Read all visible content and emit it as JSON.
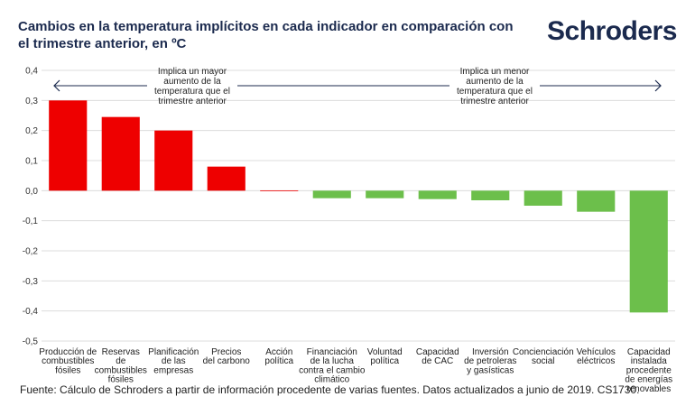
{
  "title": "Cambios en la temperatura implícitos en cada indicador en comparación con el trimestre anterior, en ºC",
  "logo_text": "Schroders",
  "source": "Fuente: Cálculo de Schroders a partir de información procedente de varias fuentes. Datos actualizados a junio de 2019. CS1730.",
  "colors": {
    "positive": "#ee0000",
    "negative": "#6cbf4b",
    "grid": "#dcdcdc",
    "text": "#1b2a4e"
  },
  "chart_data": {
    "type": "bar",
    "ylim": [
      -0.5,
      0.4
    ],
    "yticks": [
      {
        "value": 0.4,
        "label": "0,4"
      },
      {
        "value": 0.3,
        "label": "0,3"
      },
      {
        "value": 0.2,
        "label": "0,2"
      },
      {
        "value": 0.1,
        "label": "0,1"
      },
      {
        "value": 0.0,
        "label": "0,0"
      },
      {
        "value": -0.1,
        "label": "-0,1"
      },
      {
        "value": -0.2,
        "label": "-0,2"
      },
      {
        "value": -0.3,
        "label": "-0,3"
      },
      {
        "value": -0.4,
        "label": "-0,4"
      },
      {
        "value": -0.5,
        "label": "-0,5"
      }
    ],
    "grid": true,
    "categories": [
      [
        "Producción de",
        "combustibles",
        "fósiles"
      ],
      [
        "Reservas",
        "de",
        "combustibles",
        "fósiles"
      ],
      [
        "Planificación",
        "de las",
        "empresas"
      ],
      [
        "Precios",
        "del carbono"
      ],
      [
        "Acción",
        "política"
      ],
      [
        "Financiación",
        "de la lucha",
        "contra el cambio",
        "climático"
      ],
      [
        "Voluntad",
        "política"
      ],
      [
        "Capacidad",
        "de CAC"
      ],
      [
        "Inversión",
        "de petroleras",
        "y gasísticas"
      ],
      [
        "Concienciación",
        "social"
      ],
      [
        "Vehículos",
        "eléctricos"
      ],
      [
        "Capacidad",
        "instalada",
        "procedente",
        "de energías",
        "renovables"
      ]
    ],
    "values": [
      0.3,
      0.245,
      0.2,
      0.08,
      0.001,
      -0.025,
      -0.025,
      -0.028,
      -0.032,
      -0.05,
      -0.07,
      -0.405
    ],
    "annotations": [
      {
        "lines": [
          "Implica un mayor",
          "aumento de la",
          "temperatura que el",
          "trimestre anterior"
        ],
        "arrow": "left"
      },
      {
        "lines": [
          "Implica un menor",
          "aumento de la",
          "temperatura que el",
          "trimestre anterior"
        ],
        "arrow": "right"
      }
    ]
  }
}
